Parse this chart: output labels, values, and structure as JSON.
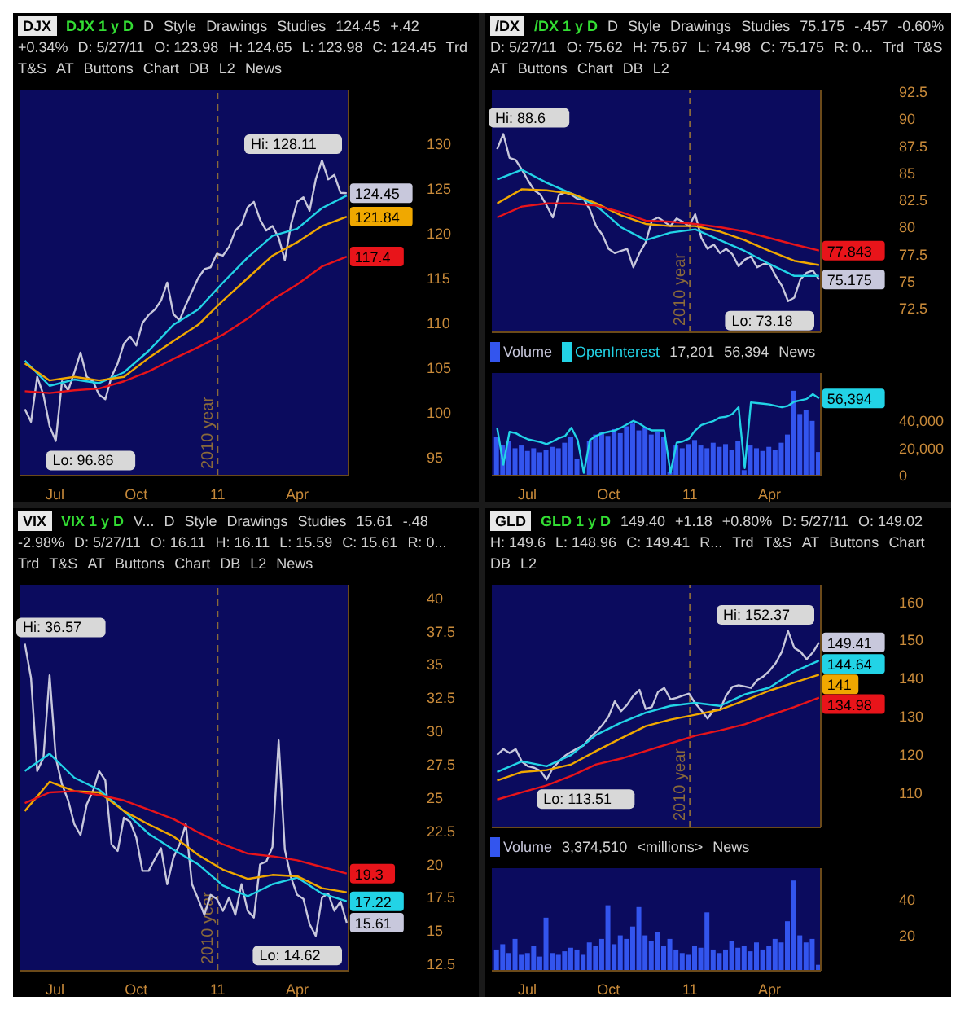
{
  "chart_data": [
    {
      "type": "line",
      "title": "DJX",
      "subtitle": "DJX 1 y D",
      "marker": "none",
      "annotations": [
        "D",
        "Style",
        "Drawings",
        "Studies",
        "124.45",
        "+.42",
        "+0.34%",
        "D: 5/27/11",
        "O: 123.98",
        "H: 124.65",
        "L: 123.98",
        "C: 124.45",
        "Trd",
        "T&S",
        "AT",
        "Buttons",
        "Chart",
        "DB",
        "L2",
        "News",
        {
          "text": "Hi: 128.11",
          "x": "2011-04-29",
          "y": 128.11
        },
        {
          "text": "Lo: 96.86",
          "x": "2010-07-02",
          "y": 96.86
        }
      ],
      "ref_lines": [
        {
          "axis": "x",
          "value": "2011-01-01",
          "label": "2010 year",
          "color": "#8a6a3a",
          "line_style": "dashed"
        }
      ],
      "xlim": [
        "2010-05-22",
        "2011-05-29"
      ],
      "xticks": [
        {
          "value": "2010-07-01",
          "label": "Jul"
        },
        {
          "value": "2010-10-01",
          "label": "Oct"
        },
        {
          "value": "2011-01-01",
          "label": "11"
        },
        {
          "value": "2011-04-01",
          "label": "Apr"
        }
      ],
      "ylim": [
        93,
        136
      ],
      "yticks": [
        95,
        100,
        105,
        110,
        115,
        120,
        125,
        130
      ],
      "x": [
        "2010-05-28",
        "2010-06-04",
        "2010-06-11",
        "2010-06-18",
        "2010-06-25",
        "2010-07-02",
        "2010-07-09",
        "2010-07-16",
        "2010-07-23",
        "2010-07-30",
        "2010-08-06",
        "2010-08-13",
        "2010-08-20",
        "2010-08-27",
        "2010-09-03",
        "2010-09-10",
        "2010-09-17",
        "2010-09-24",
        "2010-10-01",
        "2010-10-08",
        "2010-10-15",
        "2010-10-22",
        "2010-10-29",
        "2010-11-05",
        "2010-11-12",
        "2010-11-19",
        "2010-11-26",
        "2010-12-03",
        "2010-12-10",
        "2010-12-17",
        "2010-12-24",
        "2010-12-31",
        "2011-01-07",
        "2011-01-14",
        "2011-01-21",
        "2011-01-28",
        "2011-02-04",
        "2011-02-11",
        "2011-02-18",
        "2011-02-25",
        "2011-03-04",
        "2011-03-11",
        "2011-03-18",
        "2011-03-25",
        "2011-04-01",
        "2011-04-08",
        "2011-04-15",
        "2011-04-22",
        "2011-04-29",
        "2011-05-06",
        "2011-05-13",
        "2011-05-20",
        "2011-05-27"
      ],
      "series": [
        {
          "color": "#c8c8dc",
          "values": [
            100.4,
            99,
            104,
            102,
            98.5,
            96.86,
            103.5,
            102.5,
            104.5,
            106.7,
            104,
            103.5,
            102,
            101.5,
            104,
            105.5,
            107.7,
            108.5,
            107.5,
            110,
            110.9,
            111.5,
            112.5,
            114.5,
            111,
            110.3,
            112,
            113.5,
            115,
            116,
            116.2,
            117.7,
            117.5,
            118.5,
            120.3,
            121,
            122.9,
            123.5,
            121.5,
            120.3,
            120.8,
            119.5,
            117,
            121,
            123.5,
            124,
            122.5,
            126,
            128.11,
            126,
            126.5,
            124.5,
            124.45
          ],
          "value_labels": [
            null,
            null,
            null,
            null,
            null,
            null,
            null,
            null,
            null,
            null,
            null,
            null,
            null,
            null,
            null,
            null,
            null,
            null,
            null,
            null,
            null,
            null,
            null,
            null,
            null,
            null,
            null,
            null,
            null,
            null,
            null,
            null,
            null,
            null,
            null,
            null,
            null,
            null,
            null,
            null,
            null,
            null,
            null,
            null,
            null,
            null,
            null,
            null,
            null,
            null,
            null,
            null,
            "124.45"
          ]
        },
        {
          "color": "#22d3e6",
          "x": [
            "2010-05-28",
            "2010-06-25",
            "2010-07-23",
            "2010-08-20",
            "2010-09-17",
            "2010-10-15",
            "2010-11-12",
            "2010-12-10",
            "2011-01-07",
            "2011-02-04",
            "2011-03-04",
            "2011-04-01",
            "2011-04-29",
            "2011-05-27"
          ],
          "values": [
            105.8,
            103,
            103.7,
            103.3,
            104.5,
            106.9,
            109.8,
            111.5,
            114.5,
            117.3,
            119.7,
            120.5,
            122.8,
            124.2
          ]
        },
        {
          "color": "#f0a800",
          "x": [
            "2010-05-28",
            "2010-06-25",
            "2010-07-23",
            "2010-08-20",
            "2010-09-17",
            "2010-10-15",
            "2010-11-12",
            "2010-12-10",
            "2011-01-07",
            "2011-02-04",
            "2011-03-04",
            "2011-04-01",
            "2011-04-29",
            "2011-05-27"
          ],
          "values": [
            105.5,
            103.6,
            104,
            103.6,
            104,
            106.1,
            108,
            109.8,
            112.5,
            115,
            117.5,
            119,
            120.8,
            121.84
          ],
          "value_labels": [
            null,
            null,
            null,
            null,
            null,
            null,
            null,
            null,
            null,
            null,
            null,
            null,
            null,
            "121.84"
          ]
        },
        {
          "color": "#e8141a",
          "x": [
            "2010-05-28",
            "2010-06-25",
            "2010-07-23",
            "2010-08-20",
            "2010-09-17",
            "2010-10-15",
            "2010-11-12",
            "2010-12-10",
            "2011-01-07",
            "2011-02-04",
            "2011-03-04",
            "2011-04-01",
            "2011-04-29",
            "2011-05-27"
          ],
          "values": [
            102.4,
            102.2,
            102.5,
            102.7,
            103.5,
            104.6,
            106,
            107.3,
            108.7,
            110.5,
            112.6,
            114.3,
            116.3,
            117.4
          ],
          "value_labels": [
            null,
            null,
            null,
            null,
            null,
            null,
            null,
            null,
            null,
            null,
            null,
            null,
            null,
            "117.4"
          ]
        }
      ]
    },
    {
      "type": "line",
      "title": "/DX",
      "subtitle": "/DX 1 y D",
      "marker": "none",
      "tick_labels": "y",
      "annotations": [
        "D",
        "Style",
        "Drawings",
        "Studies",
        "75.175",
        "-.457",
        "-0.60%",
        "D: 5/27/11",
        "O: 75.62",
        "H: 75.67",
        "L: 74.98",
        "C: 75.175",
        "R: 0...",
        "Trd",
        "T&S",
        "AT",
        "Buttons",
        "Chart",
        "DB",
        "L2",
        {
          "text": "Hi: 88.6",
          "x": "2010-06-04",
          "y": 88.6
        },
        {
          "text": "Lo: 73.18",
          "x": "2011-04-22",
          "y": 73.18
        }
      ],
      "ref_lines": [
        {
          "axis": "x",
          "value": "2011-01-01",
          "label": "2010 year",
          "color": "#8a6a3a",
          "line_style": "dashed"
        }
      ],
      "xlim": [
        "2010-05-22",
        "2011-05-29"
      ],
      "ylim": [
        70.3,
        92.7
      ],
      "yticks": [
        72.5,
        75,
        77.5,
        80,
        82.5,
        85,
        87.5,
        90,
        92.5
      ],
      "x": [
        "2010-05-28",
        "2010-06-04",
        "2010-06-11",
        "2010-06-18",
        "2010-06-25",
        "2010-07-02",
        "2010-07-09",
        "2010-07-16",
        "2010-07-23",
        "2010-07-30",
        "2010-08-06",
        "2010-08-13",
        "2010-08-20",
        "2010-08-27",
        "2010-09-03",
        "2010-09-10",
        "2010-09-17",
        "2010-09-24",
        "2010-10-01",
        "2010-10-08",
        "2010-10-15",
        "2010-10-22",
        "2010-10-29",
        "2010-11-05",
        "2010-11-12",
        "2010-11-19",
        "2010-11-26",
        "2010-12-03",
        "2010-12-10",
        "2010-12-17",
        "2010-12-24",
        "2010-12-31",
        "2011-01-07",
        "2011-01-14",
        "2011-01-21",
        "2011-01-28",
        "2011-02-04",
        "2011-02-11",
        "2011-02-18",
        "2011-02-25",
        "2011-03-04",
        "2011-03-11",
        "2011-03-18",
        "2011-03-25",
        "2011-04-01",
        "2011-04-08",
        "2011-04-15",
        "2011-04-22",
        "2011-04-29",
        "2011-05-06",
        "2011-05-13",
        "2011-05-20",
        "2011-05-27"
      ],
      "series": [
        {
          "color": "#c8c8dc",
          "values": [
            87.2,
            88.6,
            86.4,
            86.2,
            85.3,
            84.3,
            83.4,
            83,
            82,
            80.9,
            83,
            83.2,
            83,
            82.6,
            82.6,
            81.6,
            80.1,
            79.3,
            78,
            77.6,
            77.8,
            78,
            76.3,
            77.6,
            78.6,
            80.6,
            80.9,
            80.5,
            80.1,
            80.8,
            80.5,
            80.1,
            81.2,
            79,
            78,
            78.4,
            77.6,
            78,
            77.5,
            76.4,
            77,
            77.3,
            76.3,
            76.6,
            76.6,
            75.5,
            74.6,
            73.18,
            73.5,
            75.2,
            75.8,
            76,
            75.175
          ],
          "value_labels": [
            null,
            null,
            null,
            null,
            null,
            null,
            null,
            null,
            null,
            null,
            null,
            null,
            null,
            null,
            null,
            null,
            null,
            null,
            null,
            null,
            null,
            null,
            null,
            null,
            null,
            null,
            null,
            null,
            null,
            null,
            null,
            null,
            null,
            null,
            null,
            null,
            null,
            null,
            null,
            null,
            null,
            null,
            null,
            null,
            null,
            null,
            null,
            null,
            null,
            null,
            null,
            null,
            "75.175"
          ]
        },
        {
          "color": "#22d3e6",
          "x": [
            "2010-05-28",
            "2010-06-25",
            "2010-07-23",
            "2010-08-20",
            "2010-09-17",
            "2010-10-15",
            "2010-11-12",
            "2010-12-10",
            "2011-01-07",
            "2011-02-04",
            "2011-03-04",
            "2011-04-01",
            "2011-04-29",
            "2011-05-27"
          ],
          "values": [
            84.4,
            85.3,
            84.1,
            83.1,
            82,
            80,
            78.8,
            79.5,
            79.8,
            78.8,
            77.8,
            76.6,
            75.5,
            75.5
          ]
        },
        {
          "color": "#f0a800",
          "x": [
            "2010-05-28",
            "2010-06-25",
            "2010-07-23",
            "2010-08-20",
            "2010-09-17",
            "2010-10-15",
            "2010-11-12",
            "2010-12-10",
            "2011-01-07",
            "2011-02-04",
            "2011-03-04",
            "2011-04-01",
            "2011-04-29",
            "2011-05-27"
          ],
          "values": [
            82.2,
            83.5,
            83.4,
            83.1,
            82.2,
            81.1,
            80.3,
            80.1,
            80.1,
            79.6,
            78.8,
            77.8,
            76.9,
            76.5
          ]
        },
        {
          "color": "#e8141a",
          "x": [
            "2010-05-28",
            "2010-06-25",
            "2010-07-23",
            "2010-08-20",
            "2010-09-17",
            "2010-10-15",
            "2010-11-12",
            "2010-12-10",
            "2011-01-07",
            "2011-02-04",
            "2011-03-04",
            "2011-04-01",
            "2011-04-29",
            "2011-05-27"
          ],
          "values": [
            80.9,
            81.9,
            82.2,
            82.2,
            82,
            81.4,
            80.6,
            80.5,
            80.3,
            80,
            79.6,
            79,
            78.4,
            77.843
          ],
          "value_labels": [
            null,
            null,
            null,
            null,
            null,
            null,
            null,
            null,
            null,
            null,
            null,
            null,
            null,
            "77.843"
          ]
        }
      ]
    },
    {
      "type": "bar",
      "legend": "top left",
      "marker": "none",
      "annotations": [
        "17,201",
        "56,394",
        "News"
      ],
      "xlim": [
        "2010-05-22",
        "2011-05-29"
      ],
      "xticks": [
        {
          "value": "2010-07-01",
          "label": "Jul"
        },
        {
          "value": "2010-10-01",
          "label": "Oct"
        },
        {
          "value": "2011-01-01",
          "label": "11"
        },
        {
          "value": "2011-04-01",
          "label": "Apr"
        }
      ],
      "ylim": [
        0,
        75000
      ],
      "yticks": [
        0,
        {
          "value": 20000,
          "label": "20,000"
        },
        {
          "value": 40000,
          "label": "40,000"
        }
      ],
      "x": [
        "2010-05-28",
        "2010-06-04",
        "2010-06-11",
        "2010-06-18",
        "2010-06-25",
        "2010-07-02",
        "2010-07-09",
        "2010-07-16",
        "2010-07-23",
        "2010-07-30",
        "2010-08-06",
        "2010-08-13",
        "2010-08-20",
        "2010-08-27",
        "2010-09-03",
        "2010-09-10",
        "2010-09-17",
        "2010-09-24",
        "2010-10-01",
        "2010-10-08",
        "2010-10-15",
        "2010-10-22",
        "2010-10-29",
        "2010-11-05",
        "2010-11-12",
        "2010-11-19",
        "2010-11-26",
        "2010-12-03",
        "2010-12-10",
        "2010-12-17",
        "2010-12-24",
        "2010-12-31",
        "2011-01-07",
        "2011-01-14",
        "2011-01-21",
        "2011-01-28",
        "2011-02-04",
        "2011-02-11",
        "2011-02-18",
        "2011-02-25",
        "2011-03-04",
        "2011-03-11",
        "2011-03-18",
        "2011-03-25",
        "2011-04-01",
        "2011-04-08",
        "2011-04-15",
        "2011-04-22",
        "2011-04-29",
        "2011-05-06",
        "2011-05-13",
        "2011-05-20",
        "2011-05-27"
      ],
      "series": [
        {
          "name": "Volume",
          "color": "#3355ee",
          "values": [
            28000,
            22000,
            25000,
            20000,
            22000,
            18000,
            20000,
            17000,
            19000,
            21000,
            20000,
            24000,
            28000,
            12000,
            null,
            25000,
            30000,
            32000,
            29000,
            34000,
            31000,
            36000,
            38000,
            33000,
            35000,
            30000,
            32000,
            28000,
            3000,
            22000,
            20000,
            23000,
            26000,
            22000,
            20000,
            24000,
            21000,
            23000,
            19000,
            25000,
            4000,
            22000,
            20000,
            18000,
            21000,
            19000,
            24000,
            30000,
            62000,
            45000,
            48000,
            40000,
            17201
          ]
        },
        {
          "name": "OpenInterest",
          "type": "line",
          "color": "#22d3e6",
          "values": [
            35000,
            8000,
            32000,
            31000,
            28500,
            26500,
            25500,
            24500,
            23000,
            25000,
            27500,
            29000,
            35000,
            26000,
            2000,
            26000,
            29000,
            31000,
            32000,
            33000,
            35000,
            37500,
            40000,
            38000,
            35000,
            33000,
            33000,
            33000,
            2000,
            24000,
            25000,
            27000,
            33000,
            37000,
            38500,
            40000,
            42500,
            43000,
            45000,
            50000,
            5500,
            53500,
            53000,
            52500,
            52000,
            51000,
            50000,
            51000,
            54000,
            55000,
            56000,
            59500,
            56394
          ],
          "value_labels": [
            null,
            null,
            null,
            null,
            null,
            null,
            null,
            null,
            null,
            null,
            null,
            null,
            null,
            null,
            null,
            null,
            null,
            null,
            null,
            null,
            null,
            null,
            null,
            null,
            null,
            null,
            null,
            null,
            null,
            null,
            null,
            null,
            null,
            null,
            null,
            null,
            null,
            null,
            null,
            null,
            null,
            null,
            null,
            null,
            null,
            null,
            null,
            null,
            null,
            null,
            null,
            null,
            "56,394"
          ]
        }
      ]
    },
    {
      "type": "line",
      "title": "VIX",
      "subtitle": "VIX 1 y D",
      "marker": "none",
      "annotations": [
        "V...",
        "D",
        "Style",
        "Drawings",
        "Studies",
        "15.61",
        "-.48",
        "-2.98%",
        "D: 5/27/11",
        "O: 16.11",
        "H: 16.11",
        "L: 15.59",
        "C: 15.61",
        "R: 0...",
        "Trd",
        "T&S",
        "AT",
        "Buttons",
        "Chart",
        "DB",
        "L2",
        "News",
        {
          "text": "Hi: 36.57",
          "x": "2010-05-28",
          "y": 36.57
        },
        {
          "text": "Lo: 14.62",
          "x": "2011-04-22",
          "y": 14.62
        }
      ],
      "ref_lines": [
        {
          "axis": "x",
          "value": "2011-01-01",
          "label": "2010 year",
          "color": "#8a6a3a",
          "line_style": "dashed"
        }
      ],
      "xlim": [
        "2010-05-22",
        "2011-05-29"
      ],
      "xticks": [
        {
          "value": "2010-07-01",
          "label": "Jul"
        },
        {
          "value": "2010-10-01",
          "label": "Oct"
        },
        {
          "value": "2011-01-01",
          "label": "11"
        },
        {
          "value": "2011-04-01",
          "label": "Apr"
        }
      ],
      "ylim": [
        12,
        41
      ],
      "yticks": [
        12.5,
        15,
        17.5,
        20,
        22.5,
        25,
        27.5,
        30,
        32.5,
        35,
        37.5,
        40
      ],
      "x": [
        "2010-05-28",
        "2010-06-04",
        "2010-06-11",
        "2010-06-18",
        "2010-06-25",
        "2010-07-02",
        "2010-07-09",
        "2010-07-16",
        "2010-07-23",
        "2010-07-30",
        "2010-08-06",
        "2010-08-13",
        "2010-08-20",
        "2010-08-27",
        "2010-09-03",
        "2010-09-10",
        "2010-09-17",
        "2010-09-24",
        "2010-10-01",
        "2010-10-08",
        "2010-10-15",
        "2010-10-22",
        "2010-10-29",
        "2010-11-05",
        "2010-11-12",
        "2010-11-19",
        "2010-11-26",
        "2010-12-03",
        "2010-12-10",
        "2010-12-17",
        "2010-12-24",
        "2010-12-31",
        "2011-01-07",
        "2011-01-14",
        "2011-01-21",
        "2011-01-28",
        "2011-02-04",
        "2011-02-11",
        "2011-02-18",
        "2011-02-25",
        "2011-03-04",
        "2011-03-11",
        "2011-03-18",
        "2011-03-25",
        "2011-04-01",
        "2011-04-08",
        "2011-04-15",
        "2011-04-22",
        "2011-04-29",
        "2011-05-06",
        "2011-05-13",
        "2011-05-20",
        "2011-05-27"
      ],
      "series": [
        {
          "color": "#c8c8dc",
          "values": [
            36.57,
            34,
            27,
            28,
            34.2,
            28,
            26,
            24.8,
            23,
            22.2,
            24.5,
            25.5,
            27,
            26.3,
            21.5,
            21,
            23.5,
            23.2,
            22,
            19.5,
            19.5,
            20.4,
            21.2,
            18.5,
            20.5,
            21.5,
            23,
            18.5,
            17.4,
            16.2,
            17.7,
            17.4,
            16.5,
            17.5,
            16.2,
            18.5,
            16.5,
            16,
            20,
            20.2,
            21.3,
            29.3,
            21.1,
            19,
            17.7,
            17.4,
            15.5,
            14.62,
            17.5,
            17.8,
            16.5,
            17.2,
            15.61
          ],
          "value_labels": [
            null,
            null,
            null,
            null,
            null,
            null,
            null,
            null,
            null,
            null,
            null,
            null,
            null,
            null,
            null,
            null,
            null,
            null,
            null,
            null,
            null,
            null,
            null,
            null,
            null,
            null,
            null,
            null,
            null,
            null,
            null,
            null,
            null,
            null,
            null,
            null,
            null,
            null,
            null,
            null,
            null,
            null,
            null,
            null,
            null,
            null,
            null,
            null,
            null,
            null,
            null,
            null,
            "15.61"
          ]
        },
        {
          "color": "#22d3e6",
          "x": [
            "2010-05-28",
            "2010-06-25",
            "2010-07-23",
            "2010-08-20",
            "2010-09-17",
            "2010-10-15",
            "2010-11-12",
            "2010-12-10",
            "2011-01-07",
            "2011-02-04",
            "2011-03-04",
            "2011-04-01",
            "2011-04-29",
            "2011-05-27"
          ],
          "values": [
            27,
            28.3,
            26.5,
            25.6,
            24,
            22.3,
            21.1,
            20,
            18.4,
            17.6,
            18.5,
            19,
            17.8,
            17.22
          ],
          "value_labels": [
            null,
            null,
            null,
            null,
            null,
            null,
            null,
            null,
            null,
            null,
            null,
            null,
            null,
            "17.22"
          ]
        },
        {
          "color": "#f0a800",
          "x": [
            "2010-05-28",
            "2010-06-25",
            "2010-07-23",
            "2010-08-20",
            "2010-09-17",
            "2010-10-15",
            "2010-11-12",
            "2010-12-10",
            "2011-01-07",
            "2011-02-04",
            "2011-03-04",
            "2011-04-01",
            "2011-04-29",
            "2011-05-27"
          ],
          "values": [
            24,
            26.2,
            25.5,
            25.4,
            24,
            23,
            22.1,
            20.7,
            19.6,
            18.9,
            19.2,
            19.1,
            18.2,
            17.9
          ]
        },
        {
          "color": "#e8141a",
          "x": [
            "2010-05-28",
            "2010-06-25",
            "2010-07-23",
            "2010-08-20",
            "2010-09-17",
            "2010-10-15",
            "2010-11-12",
            "2010-12-10",
            "2011-01-07",
            "2011-02-04",
            "2011-03-04",
            "2011-04-01",
            "2011-04-29",
            "2011-05-27"
          ],
          "values": [
            24.6,
            25.4,
            25.5,
            25.2,
            24.8,
            24.1,
            23.4,
            22.4,
            21.5,
            20.8,
            20.6,
            20.3,
            19.8,
            19.3
          ],
          "value_labels": [
            null,
            null,
            null,
            null,
            null,
            null,
            null,
            null,
            null,
            null,
            null,
            null,
            null,
            "19.3"
          ]
        }
      ]
    },
    {
      "type": "line",
      "title": "GLD",
      "subtitle": "GLD 1 y D",
      "marker": "none",
      "tick_labels": "y",
      "annotations": [
        "149.40",
        "+1.18",
        "+0.80%",
        "D: 5/27/11",
        "O: 149.02",
        "H: 149.6",
        "L: 148.96",
        "C: 149.41",
        "R...",
        "Trd",
        "T&S",
        "AT",
        "Buttons",
        "Chart",
        "DB",
        "L2",
        {
          "text": "Hi: 152.37",
          "x": "2011-04-22",
          "y": 152.37
        },
        {
          "text": "Lo: 113.51",
          "x": "2010-07-23",
          "y": 113.51
        }
      ],
      "ref_lines": [
        {
          "axis": "x",
          "value": "2011-01-01",
          "label": "2010 year",
          "color": "#8a6a3a",
          "line_style": "dashed"
        }
      ],
      "xlim": [
        "2010-05-22",
        "2011-05-29"
      ],
      "ylim": [
        101,
        164.5
      ],
      "yticks": [
        110,
        120,
        130,
        140,
        150,
        160
      ],
      "x": [
        "2010-05-28",
        "2010-06-04",
        "2010-06-11",
        "2010-06-18",
        "2010-06-25",
        "2010-07-02",
        "2010-07-09",
        "2010-07-16",
        "2010-07-23",
        "2010-07-30",
        "2010-08-06",
        "2010-08-13",
        "2010-08-20",
        "2010-08-27",
        "2010-09-03",
        "2010-09-10",
        "2010-09-17",
        "2010-09-24",
        "2010-10-01",
        "2010-10-08",
        "2010-10-15",
        "2010-10-22",
        "2010-10-29",
        "2010-11-05",
        "2010-11-12",
        "2010-11-19",
        "2010-11-26",
        "2010-12-03",
        "2010-12-10",
        "2010-12-17",
        "2010-12-24",
        "2010-12-31",
        "2011-01-07",
        "2011-01-14",
        "2011-01-21",
        "2011-01-28",
        "2011-02-04",
        "2011-02-11",
        "2011-02-18",
        "2011-02-25",
        "2011-03-04",
        "2011-03-11",
        "2011-03-18",
        "2011-03-25",
        "2011-04-01",
        "2011-04-08",
        "2011-04-15",
        "2011-04-22",
        "2011-04-29",
        "2011-05-06",
        "2011-05-13",
        "2011-05-20",
        "2011-05-27"
      ],
      "series": [
        {
          "color": "#c8c8dc",
          "values": [
            120,
            121.5,
            120.5,
            121.5,
            118.2,
            117,
            116.6,
            115.8,
            113.51,
            116.5,
            118.3,
            119.8,
            120.8,
            121.7,
            122.5,
            124.5,
            126,
            127.8,
            130,
            134,
            131.4,
            133.1,
            135.5,
            137,
            132,
            132.5,
            136.5,
            137.5,
            134.5,
            134.9,
            135.5,
            136,
            133.5,
            131.6,
            129.5,
            131.8,
            131.8,
            135.5,
            137.8,
            138.2,
            137.9,
            137.5,
            139.5,
            140.5,
            142,
            144,
            147,
            152.37,
            148,
            147,
            145,
            146.8,
            149.41
          ],
          "value_labels": [
            null,
            null,
            null,
            null,
            null,
            null,
            null,
            null,
            null,
            null,
            null,
            null,
            null,
            null,
            null,
            null,
            null,
            null,
            null,
            null,
            null,
            null,
            null,
            null,
            null,
            null,
            null,
            null,
            null,
            null,
            null,
            null,
            null,
            null,
            null,
            null,
            null,
            null,
            null,
            null,
            null,
            null,
            null,
            null,
            null,
            null,
            null,
            null,
            null,
            null,
            null,
            null,
            "149.41"
          ]
        },
        {
          "color": "#22d3e6",
          "x": [
            "2010-05-28",
            "2010-06-25",
            "2010-07-23",
            "2010-08-20",
            "2010-09-17",
            "2010-10-15",
            "2010-11-12",
            "2010-12-10",
            "2011-01-07",
            "2011-02-04",
            "2011-03-04",
            "2011-04-01",
            "2011-04-29",
            "2011-05-27"
          ],
          "values": [
            115.5,
            118.3,
            117,
            120,
            125.2,
            128.4,
            131,
            132.8,
            133.6,
            132.8,
            135.8,
            137.6,
            141.8,
            144.64
          ],
          "value_labels": [
            null,
            null,
            null,
            null,
            null,
            null,
            null,
            null,
            null,
            null,
            null,
            null,
            null,
            "144.64"
          ]
        },
        {
          "color": "#f0a800",
          "x": [
            "2010-05-28",
            "2010-06-25",
            "2010-07-23",
            "2010-08-20",
            "2010-09-17",
            "2010-10-15",
            "2010-11-12",
            "2010-12-10",
            "2011-01-07",
            "2011-02-04",
            "2011-03-04",
            "2011-04-01",
            "2011-04-29",
            "2011-05-27"
          ],
          "values": [
            113.3,
            115.5,
            116,
            117.5,
            121,
            124.3,
            127.5,
            129.2,
            130.5,
            131.8,
            134.2,
            136.8,
            138.9,
            141
          ],
          "value_labels": [
            null,
            null,
            null,
            null,
            null,
            null,
            null,
            null,
            null,
            null,
            null,
            null,
            null,
            "141"
          ]
        },
        {
          "color": "#e8141a",
          "x": [
            "2010-05-28",
            "2010-06-25",
            "2010-07-23",
            "2010-08-20",
            "2010-09-17",
            "2010-10-15",
            "2010-11-12",
            "2010-12-10",
            "2011-01-07",
            "2011-02-04",
            "2011-03-04",
            "2011-04-01",
            "2011-04-29",
            "2011-05-27"
          ],
          "values": [
            108.3,
            110.2,
            112,
            114.5,
            117.5,
            119,
            121,
            123,
            125,
            126.4,
            128,
            130.3,
            132.5,
            134.98
          ],
          "value_labels": [
            null,
            null,
            null,
            null,
            null,
            null,
            null,
            null,
            null,
            null,
            null,
            null,
            null,
            "134.98"
          ]
        }
      ]
    },
    {
      "type": "bar",
      "legend": "top left",
      "annotations": [
        "3,374,510",
        "<millions>",
        "News"
      ],
      "xlim": [
        "2010-05-22",
        "2011-05-29"
      ],
      "xticks": [
        {
          "value": "2010-07-01",
          "label": "Jul"
        },
        {
          "value": "2010-10-01",
          "label": "Oct"
        },
        {
          "value": "2011-01-01",
          "label": "11"
        },
        {
          "value": "2011-04-01",
          "label": "Apr"
        }
      ],
      "ylim": [
        0,
        58
      ],
      "yticks": [
        20,
        40
      ],
      "x": [
        "2010-05-28",
        "2010-06-04",
        "2010-06-11",
        "2010-06-18",
        "2010-06-25",
        "2010-07-02",
        "2010-07-09",
        "2010-07-16",
        "2010-07-23",
        "2010-07-30",
        "2010-08-06",
        "2010-08-13",
        "2010-08-20",
        "2010-08-27",
        "2010-09-03",
        "2010-09-10",
        "2010-09-17",
        "2010-09-24",
        "2010-10-01",
        "2010-10-08",
        "2010-10-15",
        "2010-10-22",
        "2010-10-29",
        "2010-11-05",
        "2010-11-12",
        "2010-11-19",
        "2010-11-26",
        "2010-12-03",
        "2010-12-10",
        "2010-12-17",
        "2010-12-24",
        "2010-12-31",
        "2011-01-07",
        "2011-01-14",
        "2011-01-21",
        "2011-01-28",
        "2011-02-04",
        "2011-02-11",
        "2011-02-18",
        "2011-02-25",
        "2011-03-04",
        "2011-03-11",
        "2011-03-18",
        "2011-03-25",
        "2011-04-01",
        "2011-04-08",
        "2011-04-15",
        "2011-04-22",
        "2011-04-29",
        "2011-05-06",
        "2011-05-13",
        "2011-05-20",
        "2011-05-27"
      ],
      "series": [
        {
          "name": "Volume",
          "color": "#3355ee",
          "values": [
            12,
            15,
            10,
            18,
            9,
            10,
            14,
            8,
            30,
            10,
            9,
            11,
            13,
            12,
            9,
            16,
            14,
            18,
            37,
            15,
            20,
            18,
            25,
            36,
            20,
            17,
            22,
            14,
            18,
            12,
            10,
            9,
            14,
            13,
            33,
            12,
            10,
            12,
            17,
            13,
            14,
            11,
            16,
            12,
            14,
            18,
            16,
            28,
            51,
            20,
            16,
            18,
            3.37
          ]
        }
      ]
    }
  ]
}
